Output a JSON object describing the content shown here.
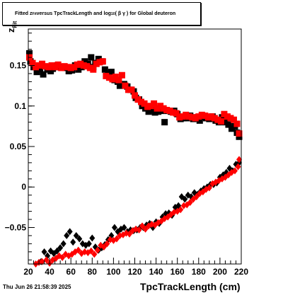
{
  "chart_data": {
    "type": "scatter",
    "title_prefix": "Fitted  z",
    "title_sub": "Fit",
    "title_suffix": "  versus TpcTrackLength and log",
    "title_sub2": "10",
    "title_end": " ( β γ ) for Global deuteron",
    "xlabel": "TpcTrackLength (cm)",
    "ylabel": "z",
    "ylabel_sub": "Fit",
    "xlim": [
      20,
      220
    ],
    "ylim": [
      -0.095,
      0.195
    ],
    "xticks": [
      20,
      40,
      60,
      80,
      100,
      120,
      140,
      160,
      180,
      200,
      220
    ],
    "yticks": [
      -0.05,
      0,
      0.05,
      0.1,
      0.15
    ],
    "ytick_labels": [
      "−0.05",
      "0",
      "0.05",
      "0.1",
      "0.15"
    ],
    "grid": false,
    "series": [
      {
        "marker": "square",
        "color": "#000000",
        "points": [
          [
            21,
            0.165
          ],
          [
            22,
            0.155
          ],
          [
            25,
            0.148
          ],
          [
            28,
            0.142
          ],
          [
            31,
            0.146
          ],
          [
            34,
            0.139
          ],
          [
            38,
            0.145
          ],
          [
            41,
            0.143
          ],
          [
            43,
            0.146
          ],
          [
            46,
            0.15
          ],
          [
            49,
            0.148
          ],
          [
            52,
            0.148
          ],
          [
            55,
            0.147
          ],
          [
            58,
            0.143
          ],
          [
            61,
            0.144
          ],
          [
            64,
            0.15
          ],
          [
            67,
            0.145
          ],
          [
            70,
            0.148
          ],
          [
            73,
            0.155
          ],
          [
            76,
            0.152
          ],
          [
            79,
            0.16
          ],
          [
            81,
            0.148
          ],
          [
            83,
            0.153
          ],
          [
            86,
            0.158
          ],
          [
            89,
            0.155
          ],
          [
            92,
            0.145
          ],
          [
            95,
            0.14
          ],
          [
            98,
            0.142
          ],
          [
            101,
            0.132
          ],
          [
            104,
            0.13
          ],
          [
            106,
            0.125
          ],
          [
            110,
            0.127
          ],
          [
            113,
            0.124
          ],
          [
            116,
            0.12
          ],
          [
            119,
            0.118
          ],
          [
            121,
            0.11
          ],
          [
            124,
            0.108
          ],
          [
            127,
            0.1
          ],
          [
            130,
            0.097
          ],
          [
            133,
            0.093
          ],
          [
            136,
            0.095
          ],
          [
            139,
            0.092
          ],
          [
            142,
            0.093
          ],
          [
            145,
            0.094
          ],
          [
            148,
            0.08
          ],
          [
            151,
            0.094
          ],
          [
            154,
            0.093
          ],
          [
            157,
            0.094
          ],
          [
            160,
            0.09
          ],
          [
            163,
            0.084
          ],
          [
            166,
            0.085
          ],
          [
            169,
            0.085
          ],
          [
            172,
            0.088
          ],
          [
            175,
            0.084
          ],
          [
            178,
            0.086
          ],
          [
            181,
            0.082
          ],
          [
            184,
            0.087
          ],
          [
            187,
            0.085
          ],
          [
            190,
            0.084
          ],
          [
            193,
            0.087
          ],
          [
            196,
            0.082
          ],
          [
            199,
            0.08
          ],
          [
            202,
            0.086
          ],
          [
            205,
            0.08
          ],
          [
            208,
            0.077
          ],
          [
            211,
            0.072
          ],
          [
            214,
            0.075
          ],
          [
            216,
            0.067
          ],
          [
            218,
            0.062
          ]
        ]
      },
      {
        "marker": "square",
        "color": "#ff0000",
        "points": [
          [
            21,
            0.16
          ],
          [
            24,
            0.153
          ],
          [
            27,
            0.148
          ],
          [
            30,
            0.15
          ],
          [
            33,
            0.152
          ],
          [
            36,
            0.149
          ],
          [
            39,
            0.148
          ],
          [
            42,
            0.15
          ],
          [
            45,
            0.148
          ],
          [
            48,
            0.151
          ],
          [
            51,
            0.147
          ],
          [
            54,
            0.149
          ],
          [
            57,
            0.148
          ],
          [
            60,
            0.147
          ],
          [
            63,
            0.148
          ],
          [
            66,
            0.151
          ],
          [
            69,
            0.152
          ],
          [
            72,
            0.15
          ],
          [
            75,
            0.149
          ],
          [
            78,
            0.147
          ],
          [
            81,
            0.145
          ],
          [
            84,
            0.152
          ],
          [
            87,
            0.154
          ],
          [
            90,
            0.155
          ],
          [
            93,
            0.137
          ],
          [
            96,
            0.135
          ],
          [
            99,
            0.133
          ],
          [
            102,
            0.136
          ],
          [
            105,
            0.132
          ],
          [
            108,
            0.138
          ],
          [
            111,
            0.125
          ],
          [
            114,
            0.12
          ],
          [
            117,
            0.12
          ],
          [
            120,
            0.113
          ],
          [
            123,
            0.108
          ],
          [
            126,
            0.105
          ],
          [
            129,
            0.103
          ],
          [
            132,
            0.099
          ],
          [
            135,
            0.1
          ],
          [
            138,
            0.103
          ],
          [
            141,
            0.097
          ],
          [
            144,
            0.1
          ],
          [
            147,
            0.097
          ],
          [
            150,
            0.095
          ],
          [
            153,
            0.094
          ],
          [
            156,
            0.092
          ],
          [
            159,
            0.091
          ],
          [
            162,
            0.086
          ],
          [
            165,
            0.087
          ],
          [
            168,
            0.089
          ],
          [
            171,
            0.087
          ],
          [
            174,
            0.086
          ],
          [
            177,
            0.085
          ],
          [
            180,
            0.087
          ],
          [
            183,
            0.089
          ],
          [
            186,
            0.088
          ],
          [
            189,
            0.086
          ],
          [
            192,
            0.087
          ],
          [
            195,
            0.085
          ],
          [
            198,
            0.083
          ],
          [
            201,
            0.081
          ],
          [
            204,
            0.09
          ],
          [
            207,
            0.087
          ],
          [
            210,
            0.085
          ],
          [
            213,
            0.083
          ],
          [
            216,
            0.078
          ],
          [
            218,
            0.066
          ]
        ]
      },
      {
        "marker": "diamond",
        "color": "#000000",
        "points": [
          [
            32,
            -0.092
          ],
          [
            35,
            -0.08
          ],
          [
            38,
            -0.085
          ],
          [
            41,
            -0.079
          ],
          [
            44,
            -0.082
          ],
          [
            47,
            -0.079
          ],
          [
            50,
            -0.075
          ],
          [
            53,
            -0.07
          ],
          [
            56,
            -0.06
          ],
          [
            59,
            -0.055
          ],
          [
            62,
            -0.068
          ],
          [
            65,
            -0.06
          ],
          [
            68,
            -0.064
          ],
          [
            71,
            -0.07
          ],
          [
            74,
            -0.072
          ],
          [
            77,
            -0.07
          ],
          [
            80,
            -0.063
          ],
          [
            83,
            -0.074
          ],
          [
            86,
            -0.078
          ],
          [
            89,
            -0.075
          ],
          [
            92,
            -0.071
          ],
          [
            95,
            -0.065
          ],
          [
            98,
            -0.06
          ],
          [
            101,
            -0.05
          ],
          [
            104,
            -0.055
          ],
          [
            107,
            -0.052
          ],
          [
            110,
            -0.05
          ],
          [
            113,
            -0.055
          ],
          [
            116,
            -0.053
          ],
          [
            119,
            -0.054
          ],
          [
            122,
            -0.053
          ],
          [
            125,
            -0.05
          ],
          [
            128,
            -0.05
          ],
          [
            131,
            -0.047
          ],
          [
            134,
            -0.045
          ],
          [
            137,
            -0.05
          ],
          [
            140,
            -0.043
          ],
          [
            143,
            -0.045
          ],
          [
            146,
            -0.037
          ],
          [
            149,
            -0.033
          ],
          [
            152,
            -0.032
          ],
          [
            155,
            -0.035
          ],
          [
            158,
            -0.025
          ],
          [
            161,
            -0.023
          ],
          [
            164,
            -0.012
          ],
          [
            167,
            -0.015
          ],
          [
            170,
            -0.01
          ],
          [
            173,
            -0.012
          ],
          [
            176,
            -0.007
          ],
          [
            179,
            -0.009
          ],
          [
            182,
            -0.005
          ],
          [
            185,
            -0.002
          ],
          [
            188,
            0.0
          ],
          [
            191,
            0.003
          ],
          [
            194,
            0.003
          ],
          [
            197,
            0.005
          ],
          [
            200,
            0.012
          ],
          [
            203,
            0.015
          ],
          [
            206,
            0.018
          ],
          [
            209,
            0.023
          ],
          [
            212,
            0.02
          ],
          [
            215,
            0.028
          ],
          [
            218,
            0.03
          ]
        ]
      },
      {
        "marker": "diamond",
        "color": "#ff0000",
        "points": [
          [
            27,
            -0.095
          ],
          [
            30,
            -0.093
          ],
          [
            33,
            -0.092
          ],
          [
            37,
            -0.09
          ],
          [
            40,
            -0.094
          ],
          [
            43,
            -0.09
          ],
          [
            46,
            -0.088
          ],
          [
            49,
            -0.085
          ],
          [
            52,
            -0.087
          ],
          [
            55,
            -0.083
          ],
          [
            58,
            -0.085
          ],
          [
            61,
            -0.083
          ],
          [
            64,
            -0.08
          ],
          [
            67,
            -0.078
          ],
          [
            70,
            -0.082
          ],
          [
            73,
            -0.08
          ],
          [
            76,
            -0.081
          ],
          [
            79,
            -0.079
          ],
          [
            82,
            -0.083
          ],
          [
            85,
            -0.078
          ],
          [
            88,
            -0.072
          ],
          [
            91,
            -0.074
          ],
          [
            94,
            -0.07
          ],
          [
            97,
            -0.065
          ],
          [
            100,
            -0.066
          ],
          [
            103,
            -0.064
          ],
          [
            106,
            -0.06
          ],
          [
            109,
            -0.059
          ],
          [
            112,
            -0.057
          ],
          [
            115,
            -0.058
          ],
          [
            118,
            -0.054
          ],
          [
            121,
            -0.052
          ],
          [
            124,
            -0.053
          ],
          [
            127,
            -0.048
          ],
          [
            130,
            -0.052
          ],
          [
            133,
            -0.048
          ],
          [
            136,
            -0.046
          ],
          [
            139,
            -0.047
          ],
          [
            142,
            -0.044
          ],
          [
            145,
            -0.042
          ],
          [
            148,
            -0.039
          ],
          [
            151,
            -0.037
          ],
          [
            154,
            -0.034
          ],
          [
            157,
            -0.031
          ],
          [
            160,
            -0.03
          ],
          [
            163,
            -0.028
          ],
          [
            166,
            -0.023
          ],
          [
            169,
            -0.022
          ],
          [
            172,
            -0.019
          ],
          [
            175,
            -0.015
          ],
          [
            178,
            -0.012
          ],
          [
            181,
            -0.008
          ],
          [
            184,
            -0.006
          ],
          [
            187,
            -0.003
          ],
          [
            190,
            -0.001
          ],
          [
            193,
            0.004
          ],
          [
            196,
            0.006
          ],
          [
            199,
            0.008
          ],
          [
            202,
            0.01
          ],
          [
            205,
            0.012
          ],
          [
            208,
            0.015
          ],
          [
            211,
            0.018
          ],
          [
            214,
            0.02
          ],
          [
            217,
            0.025
          ],
          [
            218,
            0.034
          ]
        ]
      }
    ]
  },
  "footer": {
    "timestamp": "Thu Jun 26 21:58:39 2025"
  }
}
